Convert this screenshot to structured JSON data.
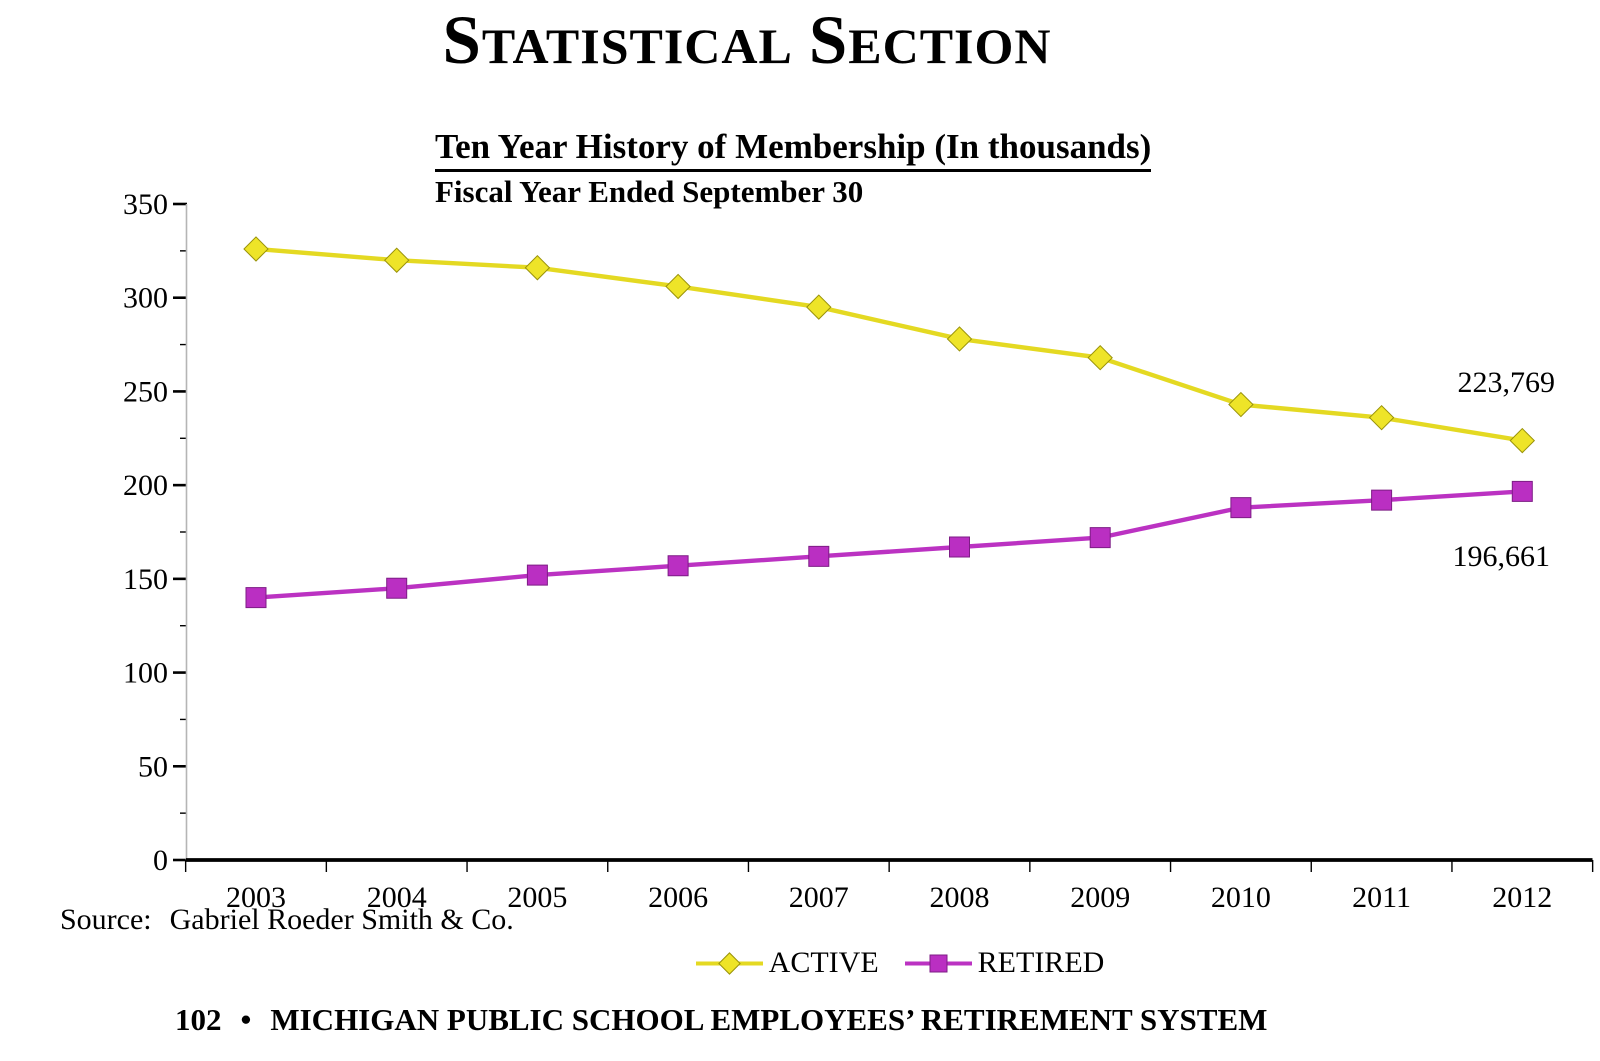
{
  "page_title": {
    "initial_1": "S",
    "rest_1": "TATISTICAL",
    "initial_2": "S",
    "rest_2": "ECTION"
  },
  "chart": {
    "title": "Ten Year History of Membership (In thousands)",
    "subtitle": "Fiscal Year Ended September 30",
    "source_label": "Source:",
    "source_value": "Gabriel Roeder Smith & Co.",
    "end_labels": {
      "active": "223,769",
      "retired": "196,661"
    }
  },
  "chart_data": {
    "type": "line",
    "title": "Ten Year History of Membership (In thousands)",
    "subtitle": "Fiscal Year Ended September 30",
    "categories": [
      "2003",
      "2004",
      "2005",
      "2006",
      "2007",
      "2008",
      "2009",
      "2010",
      "2011",
      "2012"
    ],
    "series": [
      {
        "name": "ACTIVE",
        "marker": "diamond",
        "color": "#e4d922",
        "marker_fill": "#eee428",
        "marker_edge": "#99920a",
        "values": [
          326,
          320,
          316,
          306,
          295,
          278,
          268,
          243,
          236,
          223.769
        ]
      },
      {
        "name": "RETIRED",
        "marker": "square",
        "color": "#bb32c2",
        "marker_fill": "#ba2fc2",
        "marker_edge": "#7d1d85",
        "values": [
          140,
          145,
          152,
          157,
          162,
          167,
          172,
          188,
          192,
          196.661
        ]
      }
    ],
    "ylim": [
      0,
      350
    ],
    "y_tick_step": 50,
    "y_minor_tick_step": 25,
    "xlabel": "",
    "ylabel": "",
    "grid": false,
    "legend_position": "bottom",
    "annotations": [
      "223,769",
      "196,661"
    ]
  },
  "footer": {
    "page_number": "102",
    "bullet": "•",
    "text": "MICHIGAN PUBLIC SCHOOL EMPLOYEES’ RETIREMENT SYSTEM"
  }
}
